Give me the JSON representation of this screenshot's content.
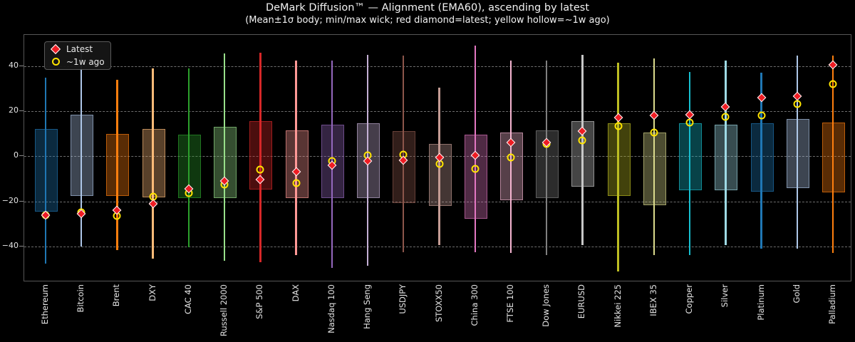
{
  "title": "DeMark Diffusion™ — Alignment (EMA60), ascending by latest",
  "subtitle": "(Mean±1σ body; min/max wick; red diamond=latest; yellow hollow=~1w ago)",
  "legend": {
    "latest_label": "Latest",
    "week_ago_label": "~1w ago",
    "latest_color": "#ee1c23",
    "latest_edge_color": "#ffffff",
    "week_ago_color": "#ffe400"
  },
  "axis": {
    "yticks": [
      {
        "label": "40",
        "value": 40
      },
      {
        "label": "20",
        "value": 20
      },
      {
        "label": "0",
        "value": 0
      },
      {
        "label": "−20",
        "value": -20
      },
      {
        "label": "−40",
        "value": -40
      }
    ],
    "ylim": [
      -55,
      54
    ],
    "grid": "dashed horizontal gridlines",
    "background_color": "#000000",
    "frame_color": "#565656"
  },
  "chart_data": {
    "type": "bar",
    "variant": "range candlestick / boxplot-style: mean±1σ body, min/max wick, latest + ~1w-ago markers",
    "title": "DeMark Diffusion™ — Alignment (EMA60), ascending by latest",
    "xlabel": "",
    "ylabel": "",
    "legend_position": "upper left",
    "categories": [
      "Ethereum",
      "Bitcoin",
      "Brent",
      "DXY",
      "CAC 40",
      "Russell 2000",
      "S&P 500",
      "DAX",
      "Nasdaq 100",
      "Hang Seng",
      "USDJPY",
      "STOXX50",
      "China 300",
      "FTSE 100",
      "Dow Jones",
      "EURUSD",
      "Nikkei 225",
      "IBEX 35",
      "Copper",
      "Silver",
      "Platinum",
      "Gold",
      "Palladium"
    ],
    "items": [
      {
        "name": "Ethereum",
        "color": "#1f77b4",
        "body_low": -24,
        "body_high": 12,
        "min": -47.5,
        "max": 35,
        "latest": -26,
        "week_ago": -26
      },
      {
        "name": "Bitcoin",
        "color": "#aec7e8",
        "body_low": -17,
        "body_high": 18.5,
        "min": -40,
        "max": 47,
        "latest": -25.5,
        "week_ago": -25
      },
      {
        "name": "Brent",
        "color": "#ff7f0e",
        "body_low": -17,
        "body_high": 10,
        "min": -41.5,
        "max": 34,
        "latest": -24,
        "week_ago": -26.5
      },
      {
        "name": "DXY",
        "color": "#ffbb78",
        "body_low": -17.5,
        "body_high": 12,
        "min": -45.5,
        "max": 39,
        "latest": -21,
        "week_ago": -18
      },
      {
        "name": "CAC 40",
        "color": "#2ca02c",
        "body_low": -18,
        "body_high": 9.5,
        "min": -40.5,
        "max": 39,
        "latest": -14.5,
        "week_ago": -16.5
      },
      {
        "name": "Russell 2000",
        "color": "#98df8a",
        "body_low": -18,
        "body_high": 13,
        "min": -46.5,
        "max": 45.5,
        "latest": -11,
        "week_ago": -12.5
      },
      {
        "name": "S&P 500",
        "color": "#d62728",
        "body_low": -14,
        "body_high": 15.5,
        "min": -47,
        "max": 46,
        "latest": -10.5,
        "week_ago": -6
      },
      {
        "name": "DAX",
        "color": "#ff9896",
        "body_low": -18,
        "body_high": 11.5,
        "min": -44,
        "max": 42.5,
        "latest": -7,
        "week_ago": -12
      },
      {
        "name": "Nasdaq 100",
        "color": "#9467bd",
        "body_low": -18,
        "body_high": 14,
        "min": -49.5,
        "max": 42.5,
        "latest": -4,
        "week_ago": -2
      },
      {
        "name": "Hang Seng",
        "color": "#c5b0d5",
        "body_low": -18,
        "body_high": 14.5,
        "min": -48.5,
        "max": 45,
        "latest": -2,
        "week_ago": 0.5
      },
      {
        "name": "USDJPY",
        "color": "#8c564b",
        "body_low": -20,
        "body_high": 11,
        "min": -42.5,
        "max": 44.5,
        "latest": -1.7,
        "week_ago": 0.7
      },
      {
        "name": "STOXX50",
        "color": "#c49c94",
        "body_low": -21.5,
        "body_high": 5.5,
        "min": -39.5,
        "max": 30.5,
        "latest": -0.5,
        "week_ago": -3.5
      },
      {
        "name": "China 300",
        "color": "#e377c2",
        "body_low": -27,
        "body_high": 9.5,
        "min": -42.5,
        "max": 49,
        "latest": 0.5,
        "week_ago": -5.5
      },
      {
        "name": "FTSE 100",
        "color": "#f7b6d2",
        "body_low": -19,
        "body_high": 10.5,
        "min": -43,
        "max": 42.5,
        "latest": 6,
        "week_ago": -0.5
      },
      {
        "name": "Dow Jones",
        "color": "#7f7f7f",
        "body_low": -18,
        "body_high": 11.5,
        "min": -44,
        "max": 42.5,
        "latest": 6.2,
        "week_ago": 5.5
      },
      {
        "name": "EURUSD",
        "color": "#c7c7c7",
        "body_low": -13,
        "body_high": 15.5,
        "min": -39.5,
        "max": 45,
        "latest": 11,
        "week_ago": 7
      },
      {
        "name": "Nikkei 225",
        "color": "#bcbd22",
        "body_low": -17,
        "body_high": 14.5,
        "min": -51,
        "max": 41.5,
        "latest": 17,
        "week_ago": 13.5
      },
      {
        "name": "IBEX 35",
        "color": "#dbdb8d",
        "body_low": -21,
        "body_high": 10.5,
        "min": -44,
        "max": 43.5,
        "latest": 18,
        "week_ago": 10.5
      },
      {
        "name": "Copper",
        "color": "#17becf",
        "body_low": -14.5,
        "body_high": 14.5,
        "min": -44,
        "max": 37.5,
        "latest": 18.5,
        "week_ago": 15
      },
      {
        "name": "Silver",
        "color": "#9edae5",
        "body_low": -14.5,
        "body_high": 14,
        "min": -39.5,
        "max": 42.5,
        "latest": 22,
        "week_ago": 17.5
      },
      {
        "name": "Platinum",
        "color": "#1f77b4",
        "body_low": -15,
        "body_high": 14.5,
        "min": -41,
        "max": 37,
        "latest": 26,
        "week_ago": 18
      },
      {
        "name": "Gold",
        "color": "#aec7e8",
        "body_low": -13.5,
        "body_high": 16.5,
        "min": -41,
        "max": 44.5,
        "latest": 26.5,
        "week_ago": 23
      },
      {
        "name": "Palladium",
        "color": "#ff7f0e",
        "body_low": -15.5,
        "body_high": 15,
        "min": -43,
        "max": 44.5,
        "latest": 40.5,
        "week_ago": 32
      }
    ]
  }
}
